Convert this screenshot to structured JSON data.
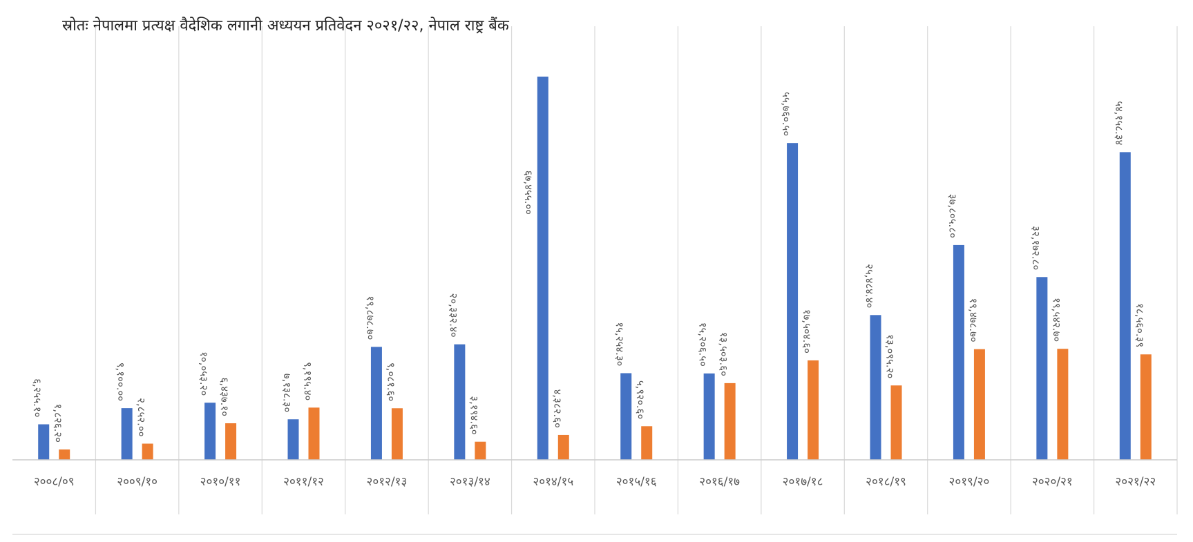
{
  "source": "स्रोतः नेपालमा प्रत्यक्ष वैदेशिक लगानी अध्ययन प्रतिवेदन २०२१/२२, नेपाल राष्ट्र बैंक",
  "chart_data": {
    "type": "bar",
    "title": "",
    "xlabel": "",
    "ylabel": "",
    "ylim": [
      0,
      70000
    ],
    "grid": "vertical separators between categories",
    "legend": "none",
    "categories": [
      "२००८/०९",
      "२००९/१०",
      "२०१०/११",
      "२०११/१२",
      "२०१२/१३",
      "२०१३/१४",
      "२०१४/१५",
      "२०१५/१६",
      "२०१६/१७",
      "२०१७/१८",
      "२०१८/१९",
      "२०१९/२०",
      "२०२०/२१",
      "२०२१/२२"
    ],
    "series": [
      {
        "color": "#4472C4",
        "values": [
          6255.1,
          9100.0,
          10053.2,
          7138.3,
          19878.7,
          20332.4,
          67455.0,
          15254.3,
          15206.5,
          55760.5,
          25484.4,
          37805.8,
          32172.8,
          54158.34
        ],
        "labels": [
          "६,२५५.१०",
          "९,१००.००",
          "१०,०५३.२०",
          "७,१३८.३०",
          "१९,८७८.७०",
          "२०,३३२.४०",
          "६७,४५५.००",
          "१५,२५४.३०",
          "१५,२०६.५०",
          "५५,७६०.५०",
          "२५,४८४.४०",
          "३७,८०५.८०",
          "३२,१७२.८०",
          "५४,१५८.३४"
        ]
      },
      {
        "color": "#ED7D31",
        "values": [
          1826.2,
          2852.0,
          6437.1,
          9195.4,
          9081.6,
          3194.6,
          4382.6,
          5920.6,
          13503.6,
          17504.6,
          13095.2,
          19478.7,
          19542.7,
          18560.39
        ],
        "labels": [
          "१,८२६.२०",
          "२,८५२.००",
          "६,४३७.१०",
          "९,१९५.४०",
          "९,०८१.६०",
          "३,१९४.६०",
          "४,३८२.६०",
          "५,९२०.६०",
          "१३,५०३.६०",
          "१७,५०४.६०",
          "१३,०९५.२०",
          "१९,४७८.७०",
          "१९,५४२.७०",
          "१८,५६०.३९"
        ]
      }
    ]
  }
}
